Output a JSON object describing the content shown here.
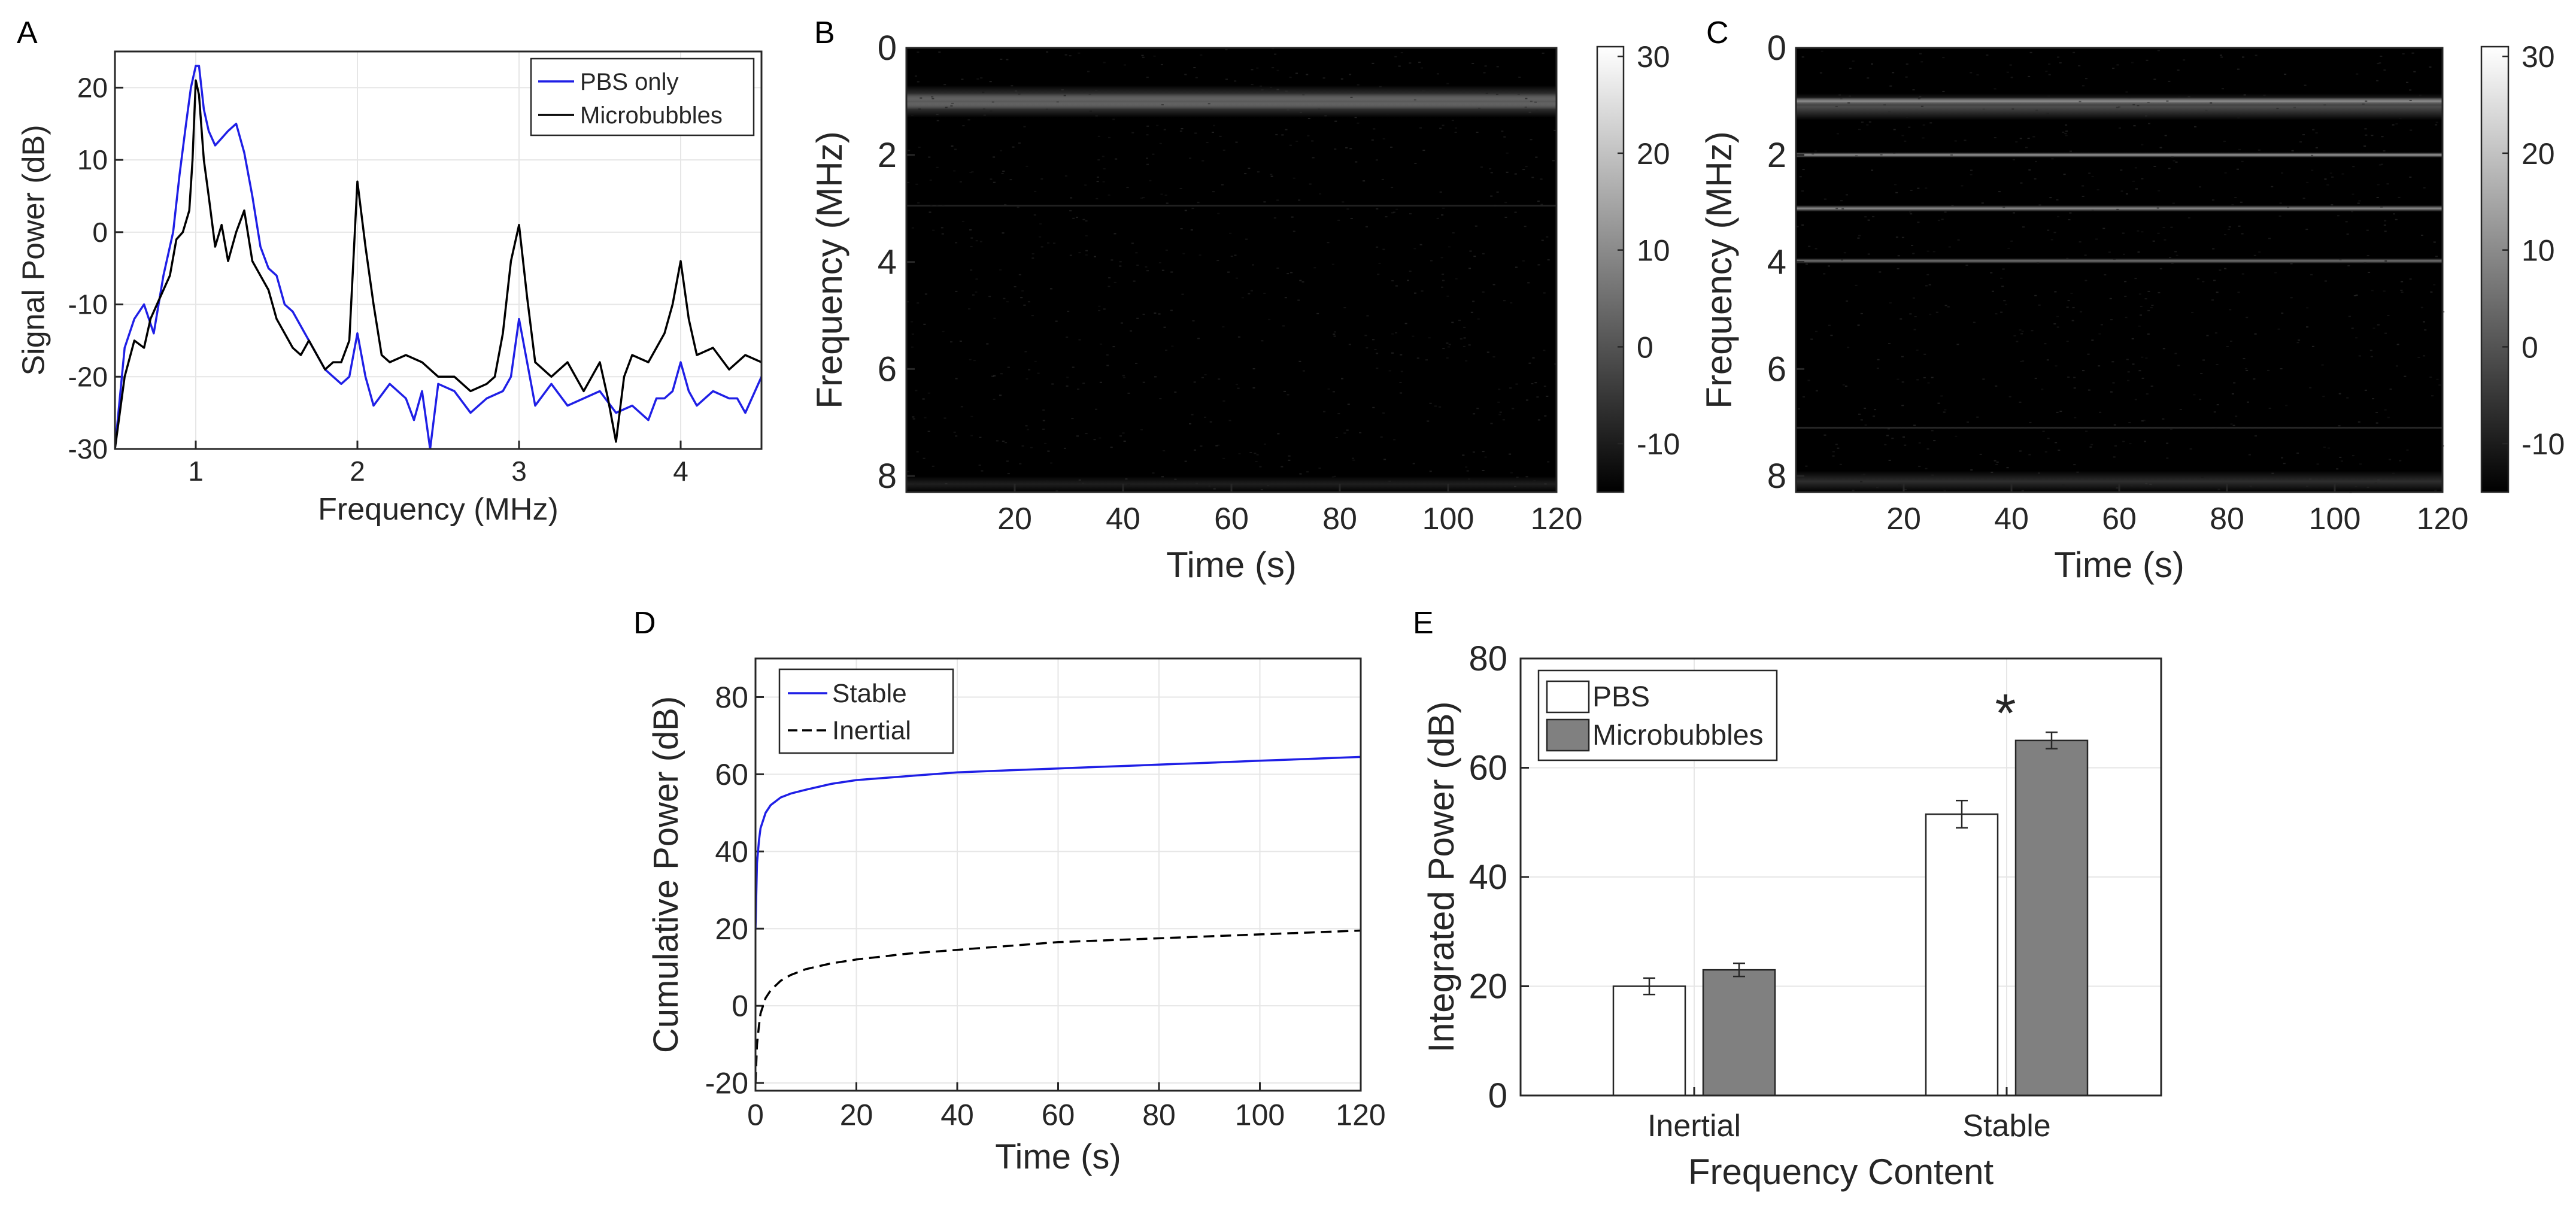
{
  "panels": {
    "A": "A",
    "B": "B",
    "C": "C",
    "D": "D",
    "E": "E"
  },
  "colors": {
    "blue": "#1f1fe6",
    "black": "#000000",
    "gray_bar": "#808080",
    "axis": "#262626",
    "grid": "#e6e6e6"
  },
  "chart_data": [
    {
      "id": "A",
      "type": "line",
      "xlabel": "Frequency (MHz)",
      "ylabel": "Signal Power (dB)",
      "xlim": [
        0.5,
        4.5
      ],
      "ylim": [
        -30,
        25
      ],
      "xticks": [
        1,
        2,
        3,
        4
      ],
      "yticks": [
        -30,
        -20,
        -10,
        0,
        10,
        20
      ],
      "grid": true,
      "legend_position": "top-right",
      "series": [
        {
          "name": "PBS only",
          "color": "#1f1fe6",
          "x": [
            0.5,
            0.56,
            0.62,
            0.68,
            0.74,
            0.8,
            0.86,
            0.9,
            0.94,
            0.97,
            1.0,
            1.02,
            1.05,
            1.08,
            1.12,
            1.16,
            1.2,
            1.25,
            1.3,
            1.35,
            1.4,
            1.45,
            1.5,
            1.55,
            1.6,
            1.7,
            1.8,
            1.9,
            1.95,
            2.0,
            2.05,
            2.1,
            2.2,
            2.3,
            2.35,
            2.4,
            2.45,
            2.5,
            2.6,
            2.7,
            2.8,
            2.9,
            2.95,
            3.0,
            3.05,
            3.1,
            3.2,
            3.3,
            3.4,
            3.5,
            3.6,
            3.7,
            3.8,
            3.85,
            3.9,
            3.95,
            4.0,
            4.05,
            4.1,
            4.2,
            4.3,
            4.35,
            4.4,
            4.5
          ],
          "y": [
            -30,
            -16,
            -12,
            -10,
            -14,
            -6,
            0,
            8,
            15,
            20,
            23,
            23,
            17,
            14,
            12,
            13,
            14,
            15,
            11,
            5,
            -2,
            -5,
            -6,
            -10,
            -11,
            -15,
            -19,
            -21,
            -20,
            -14,
            -20,
            -24,
            -21,
            -23,
            -26,
            -22,
            -30,
            -21,
            -22,
            -25,
            -23,
            -22,
            -20,
            -12,
            -18,
            -24,
            -21,
            -24,
            -23,
            -22,
            -25,
            -24,
            -26,
            -23,
            -23,
            -22,
            -18,
            -22,
            -24,
            -22,
            -23,
            -23,
            -25,
            -20
          ]
        },
        {
          "name": "Microbubbles",
          "color": "#000000",
          "x": [
            0.5,
            0.56,
            0.62,
            0.68,
            0.72,
            0.76,
            0.8,
            0.84,
            0.88,
            0.92,
            0.96,
            0.98,
            1.0,
            1.02,
            1.05,
            1.08,
            1.12,
            1.16,
            1.2,
            1.25,
            1.3,
            1.35,
            1.4,
            1.45,
            1.5,
            1.55,
            1.6,
            1.65,
            1.7,
            1.8,
            1.85,
            1.9,
            1.95,
            2.0,
            2.05,
            2.1,
            2.15,
            2.2,
            2.3,
            2.4,
            2.5,
            2.6,
            2.7,
            2.8,
            2.85,
            2.9,
            2.95,
            3.0,
            3.05,
            3.1,
            3.2,
            3.3,
            3.4,
            3.5,
            3.55,
            3.6,
            3.65,
            3.7,
            3.8,
            3.85,
            3.9,
            3.95,
            4.0,
            4.05,
            4.1,
            4.2,
            4.3,
            4.4,
            4.5
          ],
          "y": [
            -30,
            -20,
            -15,
            -16,
            -12,
            -10,
            -8,
            -6,
            -1,
            0,
            3,
            10,
            21,
            19,
            10,
            5,
            -2,
            1,
            -4,
            0,
            3,
            -4,
            -6,
            -8,
            -12,
            -14,
            -16,
            -17,
            -15,
            -19,
            -18,
            -18,
            -15,
            7,
            -2,
            -10,
            -17,
            -18,
            -17,
            -18,
            -20,
            -20,
            -22,
            -21,
            -20,
            -14,
            -4,
            1,
            -9,
            -18,
            -20,
            -18,
            -22,
            -18,
            -23,
            -29,
            -20,
            -17,
            -18,
            -16,
            -14,
            -10,
            -4,
            -12,
            -17,
            -16,
            -19,
            -17,
            -18
          ]
        }
      ]
    },
    {
      "id": "B",
      "type": "heatmap",
      "xlabel": "Time (s)",
      "ylabel": "Frequency (MHz)",
      "xlim": [
        0,
        120
      ],
      "ylim": [
        0,
        8.3
      ],
      "xticks": [
        20,
        40,
        60,
        80,
        100,
        120
      ],
      "yticks": [
        0,
        2,
        4,
        6,
        8
      ],
      "colorbar": {
        "min": -15,
        "max": 31,
        "ticks": [
          30,
          20,
          10,
          0,
          -10
        ]
      },
      "bands": [
        {
          "freq": 1.0,
          "width": 0.3,
          "level": 0.82
        },
        {
          "freq": 1.0,
          "width": 0.6,
          "level": 0.35
        },
        {
          "freq": 2.95,
          "width": 0.05,
          "level": 0.16
        },
        {
          "freq": 8.15,
          "width": 0.3,
          "level": 0.12
        }
      ]
    },
    {
      "id": "C",
      "type": "heatmap",
      "xlabel": "Time (s)",
      "ylabel": "Frequency (MHz)",
      "xlim": [
        0,
        120
      ],
      "ylim": [
        0,
        8.3
      ],
      "xticks": [
        20,
        40,
        60,
        80,
        100,
        120
      ],
      "yticks": [
        0,
        2,
        4,
        6,
        8
      ],
      "colorbar": {
        "min": -15,
        "max": 31,
        "ticks": [
          30,
          20,
          10,
          0,
          -10
        ]
      },
      "bands": [
        {
          "freq": 1.0,
          "width": 0.15,
          "level": 0.9
        },
        {
          "freq": 1.1,
          "width": 0.5,
          "level": 0.3
        },
        {
          "freq": 2.0,
          "width": 0.1,
          "level": 0.6
        },
        {
          "freq": 3.0,
          "width": 0.12,
          "level": 0.55
        },
        {
          "freq": 3.98,
          "width": 0.1,
          "level": 0.45
        },
        {
          "freq": 7.1,
          "width": 0.05,
          "level": 0.2
        },
        {
          "freq": 8.1,
          "width": 0.4,
          "level": 0.18
        }
      ]
    },
    {
      "id": "D",
      "type": "line",
      "xlabel": "Time (s)",
      "ylabel": "Cumulative Power (dB)",
      "xlim": [
        0,
        120
      ],
      "ylim": [
        -22,
        90
      ],
      "xticks": [
        0,
        20,
        40,
        60,
        80,
        100,
        120
      ],
      "yticks": [
        -20,
        0,
        20,
        40,
        60,
        80
      ],
      "grid": true,
      "legend_position": "top-left",
      "series": [
        {
          "name": "Stable",
          "color": "#1f1fe6",
          "dash": "solid",
          "x": [
            0,
            0.3,
            0.7,
            1,
            2,
            3,
            5,
            7,
            10,
            15,
            20,
            30,
            40,
            50,
            60,
            70,
            80,
            90,
            100,
            110,
            120
          ],
          "y": [
            20,
            37,
            43,
            46,
            50,
            52,
            54,
            55,
            56,
            57.5,
            58.5,
            59.5,
            60.5,
            61,
            61.5,
            62,
            62.5,
            63,
            63.5,
            64,
            64.5
          ]
        },
        {
          "name": "Inertial",
          "color": "#000000",
          "dash": "dashed",
          "x": [
            0,
            0.3,
            0.7,
            1,
            2,
            3,
            5,
            7,
            10,
            15,
            20,
            30,
            40,
            50,
            60,
            70,
            80,
            90,
            100,
            110,
            120
          ],
          "y": [
            -20,
            -10,
            -5,
            -2,
            2,
            4,
            6.5,
            8,
            9.5,
            11,
            12,
            13.5,
            14.5,
            15.5,
            16.5,
            17,
            17.5,
            18,
            18.5,
            19,
            19.5
          ]
        }
      ]
    },
    {
      "id": "E",
      "type": "bar",
      "xlabel": "Frequency Content",
      "ylabel": "Integrated Power (dB)",
      "ylim": [
        0,
        80
      ],
      "yticks": [
        0,
        20,
        40,
        60,
        80
      ],
      "categories": [
        "Inertial",
        "Stable"
      ],
      "legend_position": "top-left",
      "annotation": "*",
      "series": [
        {
          "name": "PBS",
          "color": "#ffffff",
          "values": [
            20,
            51.5
          ],
          "errors": [
            1.5,
            2.5
          ]
        },
        {
          "name": "Microbubbles",
          "color": "#808080",
          "values": [
            23,
            65
          ],
          "errors": [
            1.2,
            1.5
          ]
        }
      ]
    }
  ]
}
